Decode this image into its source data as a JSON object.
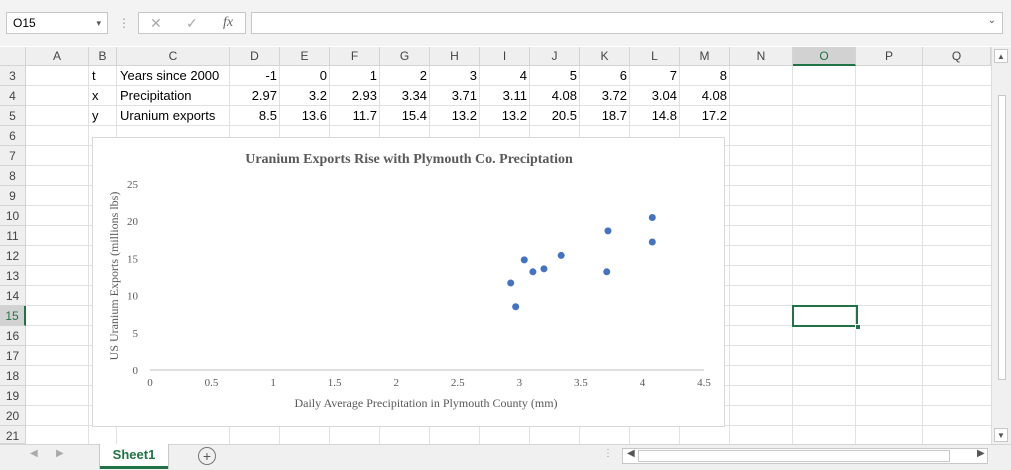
{
  "formula_bar": {
    "name_box": "O15",
    "name_box_arrow": "▾",
    "cancel_icon": "✕",
    "enter_icon": "✓",
    "fx_label": "fx",
    "formula_value": "",
    "expand_arrow": "⌄"
  },
  "columns": [
    "A",
    "B",
    "C",
    "D",
    "E",
    "F",
    "G",
    "H",
    "I",
    "J",
    "K",
    "L",
    "M",
    "N",
    "O",
    "P",
    "Q"
  ],
  "selected_column": "O",
  "rows": [
    "3",
    "4",
    "5",
    "6",
    "7",
    "8",
    "9",
    "10",
    "11",
    "12",
    "13",
    "14",
    "15",
    "16",
    "17",
    "18",
    "19",
    "20",
    "21"
  ],
  "selected_row": "15",
  "table": {
    "row3": {
      "b": "t",
      "c": "Years since 2000",
      "values": [
        "-1",
        "0",
        "1",
        "2",
        "3",
        "4",
        "5",
        "6",
        "7",
        "8"
      ]
    },
    "row4": {
      "b": "x",
      "c": "Precipitation",
      "values": [
        "2.97",
        "3.2",
        "2.93",
        "3.34",
        "3.71",
        "3.11",
        "4.08",
        "3.72",
        "3.04",
        "4.08"
      ]
    },
    "row5": {
      "b": "y",
      "c": "Uranium exports",
      "values": [
        "8.5",
        "13.6",
        "11.7",
        "15.4",
        "13.2",
        "13.2",
        "20.5",
        "18.7",
        "14.8",
        "17.2"
      ]
    }
  },
  "chart_data": {
    "type": "scatter",
    "title": "Uranium Exports Rise with Plymouth Co. Preciptation",
    "xlabel": "Daily Average Precipitation in Plymouth County (mm)",
    "ylabel": "US Uranium Exports (millions lbs)",
    "xlim": [
      0,
      4.5
    ],
    "ylim": [
      0,
      25
    ],
    "xticks": [
      "0",
      "0.5",
      "1",
      "1.5",
      "2",
      "2.5",
      "3",
      "3.5",
      "4",
      "4.5"
    ],
    "yticks": [
      "0",
      "5",
      "10",
      "15",
      "20",
      "25"
    ],
    "series": [
      {
        "name": "Uranium exports",
        "color": "#4472c4",
        "x": [
          2.97,
          3.2,
          2.93,
          3.34,
          3.71,
          3.11,
          4.08,
          3.72,
          3.04,
          4.08
        ],
        "y": [
          8.5,
          13.6,
          11.7,
          15.4,
          13.2,
          13.2,
          20.5,
          18.7,
          14.8,
          17.2
        ]
      }
    ]
  },
  "sheet": {
    "tab_label": "Sheet1",
    "add_label": "+"
  },
  "colors": {
    "accent": "#217346",
    "marker": "#4472c4"
  }
}
